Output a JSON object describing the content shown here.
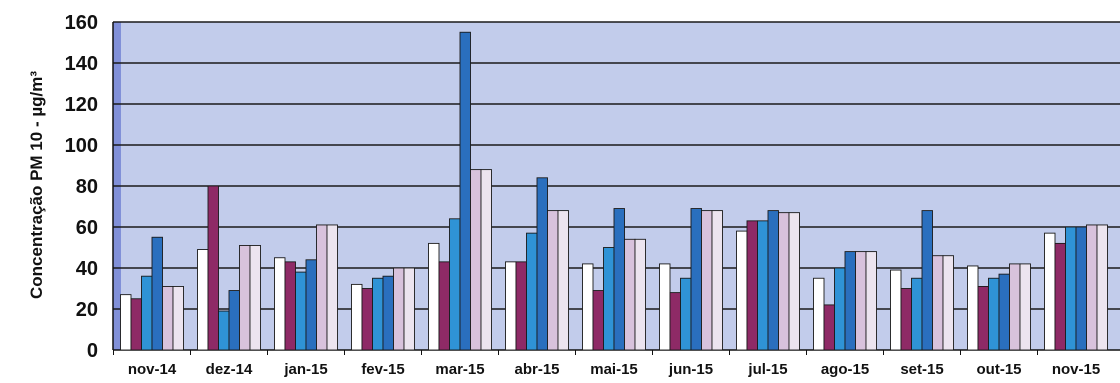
{
  "chart_data": {
    "type": "bar",
    "title": "",
    "xlabel": "",
    "ylabel": "Concentração PM 10 - µg/m³",
    "ylim": [
      0,
      160
    ],
    "yticks": [
      0,
      20,
      40,
      60,
      80,
      100,
      120,
      140,
      160
    ],
    "grid": true,
    "categories": [
      "nov-14",
      "dez-14",
      "jan-15",
      "fev-15",
      "mar-15",
      "abr-15",
      "mai-15",
      "jun-15",
      "jul-15",
      "ago-15",
      "set-15",
      "out-15",
      "nov-15"
    ],
    "series": [
      {
        "color": "#ffffff",
        "values": [
          27,
          49,
          45,
          32,
          52,
          43,
          42,
          42,
          58,
          35,
          39,
          41,
          57
        ]
      },
      {
        "color": "#8e2a66",
        "values": [
          25,
          80,
          43,
          30,
          43,
          43,
          29,
          28,
          63,
          22,
          30,
          31,
          52
        ]
      },
      {
        "color": "#2f93d6",
        "values": [
          36,
          19,
          38,
          35,
          64,
          57,
          50,
          35,
          63,
          40,
          35,
          35,
          60
        ]
      },
      {
        "color": "#2a6fbe",
        "values": [
          55,
          29,
          44,
          36,
          155,
          84,
          69,
          69,
          68,
          48,
          68,
          37,
          60
        ]
      },
      {
        "color": "#d8c2dc",
        "values": [
          31,
          51,
          61,
          40,
          88,
          68,
          54,
          68,
          67,
          48,
          46,
          42,
          61
        ]
      },
      {
        "color": "#ece4ef",
        "values": [
          31,
          51,
          61,
          40,
          88,
          68,
          54,
          68,
          67,
          48,
          46,
          42,
          61
        ]
      }
    ],
    "colors": {
      "plot_bg": "#c2cceb",
      "plot_left_band": "#8190d8",
      "grid": "#1a1a1a"
    }
  }
}
